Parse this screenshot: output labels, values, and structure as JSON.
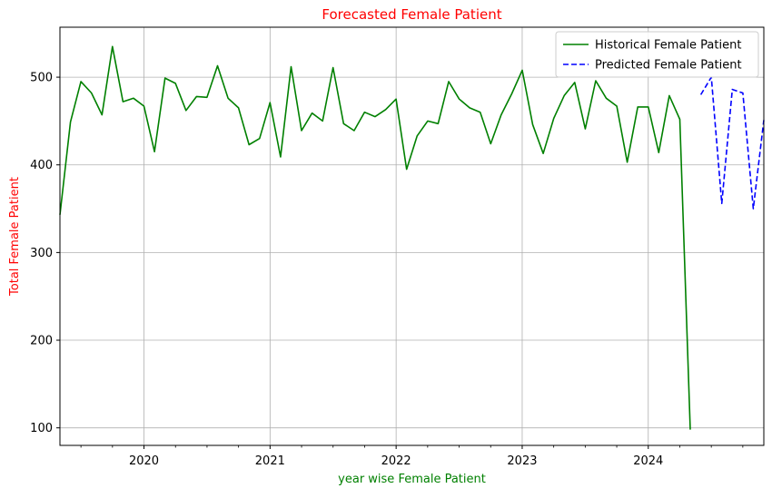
{
  "chart_data": {
    "type": "line",
    "title": "Forecasted Female Patient",
    "xlabel": "year wise Female Patient",
    "ylabel": "Total Female Patient",
    "x_tick_labels": [
      "2020",
      "2021",
      "2022",
      "2023",
      "2024"
    ],
    "y_ticks": [
      100,
      200,
      300,
      400,
      500
    ],
    "xlim": [
      "2019-05",
      "2024-12"
    ],
    "ylim": [
      80,
      557
    ],
    "grid": true,
    "legend_position": "top-right",
    "colors": {
      "title": "#ff0000",
      "ylabel": "#ff0000",
      "xlabel": "#008000"
    },
    "series": [
      {
        "name": "Historical Female Patient",
        "style": "solid",
        "color": "#008000",
        "x": [
          "2019-05",
          "2019-06",
          "2019-07",
          "2019-08",
          "2019-09",
          "2019-10",
          "2019-11",
          "2019-12",
          "2020-01",
          "2020-02",
          "2020-03",
          "2020-04",
          "2020-05",
          "2020-06",
          "2020-07",
          "2020-08",
          "2020-09",
          "2020-10",
          "2020-11",
          "2020-12",
          "2021-01",
          "2021-02",
          "2021-03",
          "2021-04",
          "2021-05",
          "2021-06",
          "2021-07",
          "2021-08",
          "2021-09",
          "2021-10",
          "2021-11",
          "2021-12",
          "2022-01",
          "2022-02",
          "2022-03",
          "2022-04",
          "2022-05",
          "2022-06",
          "2022-07",
          "2022-08",
          "2022-09",
          "2022-10",
          "2022-11",
          "2022-12",
          "2023-01",
          "2023-02",
          "2023-03",
          "2023-04",
          "2023-05",
          "2023-06",
          "2023-07",
          "2023-08",
          "2023-09",
          "2023-10",
          "2023-11",
          "2023-12",
          "2024-01",
          "2024-02",
          "2024-03",
          "2024-04",
          "2024-05"
        ],
        "values": [
          343,
          449,
          495,
          482,
          457,
          535,
          472,
          476,
          467,
          415,
          499,
          493,
          462,
          478,
          477,
          513,
          476,
          465,
          423,
          430,
          471,
          409,
          512,
          439,
          459,
          450,
          511,
          447,
          439,
          460,
          455,
          463,
          475,
          395,
          433,
          450,
          447,
          495,
          475,
          465,
          460,
          424,
          457,
          481,
          508,
          446,
          413,
          453,
          479,
          494,
          441,
          496,
          476,
          467,
          403,
          466,
          466,
          414,
          479,
          452,
          98
        ]
      },
      {
        "name": "Predicted Female Patient",
        "style": "dashed",
        "color": "#0000ff",
        "x": [
          "2024-06",
          "2024-07",
          "2024-08",
          "2024-09",
          "2024-10",
          "2024-11",
          "2024-12"
        ],
        "values": [
          480,
          500,
          356,
          486,
          482,
          350,
          451
        ]
      }
    ]
  }
}
